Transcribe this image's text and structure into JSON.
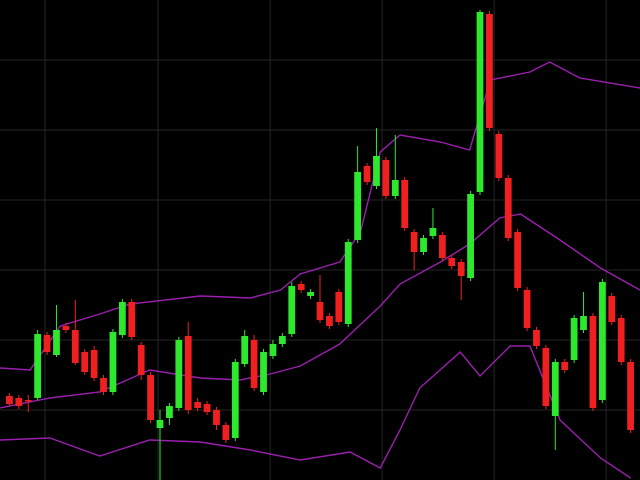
{
  "chart_data": {
    "type": "candlestick",
    "x": [
      1,
      2,
      3,
      4,
      5,
      6,
      7,
      8,
      9,
      10,
      11,
      12,
      13,
      14,
      15,
      16,
      17,
      18,
      19,
      20,
      21,
      22,
      23,
      24,
      25,
      26,
      27,
      28,
      29,
      30,
      31,
      32,
      33,
      34,
      35,
      36,
      37,
      38,
      39,
      40,
      41,
      42,
      43,
      44,
      45,
      46,
      47,
      48,
      49,
      50,
      51,
      52,
      53,
      54,
      55,
      56,
      57,
      58,
      59,
      60,
      61,
      62,
      63,
      64,
      65,
      66,
      67
    ],
    "open": [
      84,
      82,
      80,
      82,
      145,
      125,
      154,
      150,
      128,
      130,
      102,
      88,
      145,
      178,
      135,
      105,
      52,
      62,
      72,
      144,
      78,
      76,
      70,
      55,
      42,
      116,
      140,
      88,
      124,
      136,
      146,
      196,
      184,
      178,
      164,
      188,
      156,
      240,
      314,
      294,
      320,
      284,
      300,
      248,
      228,
      244,
      245,
      222,
      218,
      202,
      288,
      466,
      346,
      302,
      248,
      190,
      150,
      132,
      64,
      118,
      120,
      150,
      164,
      80,
      184,
      162,
      118
    ],
    "high": [
      87,
      85,
      85,
      150,
      148,
      175,
      157,
      180,
      131,
      134,
      105,
      151,
      181,
      181,
      138,
      108,
      70,
      77,
      143,
      158,
      82,
      79,
      73,
      58,
      121,
      150,
      145,
      131,
      140,
      147,
      198,
      199,
      191,
      205,
      167,
      191,
      241,
      334,
      317,
      352,
      323,
      345,
      303,
      251,
      245,
      272,
      248,
      225,
      221,
      289,
      470,
      469,
      349,
      305,
      251,
      193,
      153,
      135,
      121,
      121,
      165,
      188,
      167,
      201,
      187,
      165,
      121
    ],
    "low": [
      74,
      71,
      68,
      80,
      125,
      123,
      147,
      115,
      105,
      99,
      85,
      85,
      142,
      140,
      100,
      57,
      0,
      55,
      69,
      66,
      69,
      65,
      50,
      37,
      39,
      113,
      89,
      85,
      121,
      133,
      143,
      187,
      181,
      157,
      151,
      155,
      153,
      237,
      295,
      291,
      281,
      281,
      249,
      210,
      225,
      241,
      219,
      211,
      180,
      199,
      285,
      349,
      299,
      239,
      189,
      149,
      131,
      71,
      30,
      107,
      117,
      147,
      69,
      77,
      155,
      115,
      47
    ],
    "close": [
      76,
      74,
      79,
      146,
      128,
      150,
      150,
      117,
      108,
      102,
      88,
      148,
      178,
      143,
      105,
      60,
      60,
      74,
      140,
      70,
      72,
      68,
      55,
      40,
      118,
      144,
      92,
      128,
      136,
      144,
      194,
      190,
      188,
      160,
      154,
      158,
      238,
      308,
      298,
      324,
      284,
      300,
      252,
      228,
      242,
      252,
      222,
      214,
      204,
      286,
      468,
      352,
      302,
      242,
      192,
      152,
      134,
      74,
      118,
      110,
      162,
      164,
      72,
      198,
      158,
      118,
      50
    ],
    "up_color": "#2ee82e",
    "down_color": "#f02020",
    "xlim": [
      0,
      68
    ],
    "ylim": [
      0,
      480
    ],
    "xticks": [
      4.78,
      16.79,
      28.7,
      40.6,
      52.5,
      64.4
    ],
    "yticks": [
      420,
      350,
      280,
      210,
      140,
      70
    ],
    "grid": true,
    "grid_color": "#262626",
    "overlays": [
      {
        "color": "#9b1fae",
        "x": [
          0,
          3.2,
          6.4,
          10.6,
          13.8,
          21.3,
          26.6,
          29.8,
          31.9,
          36.1,
          38.3,
          40.4,
          42.5,
          46.8,
          49.9,
          52.1,
          56.3,
          58.4,
          61.6,
          68
        ],
        "values": [
          112,
          110,
          154,
          166,
          176,
          184,
          182,
          190,
          206,
          218,
          248,
          328,
          345,
          338,
          330,
          400,
          408,
          418,
          402,
          392
        ]
      },
      {
        "color": "#9b1fae",
        "x": [
          0,
          5.3,
          10.6,
          15.9,
          21.3,
          25.5,
          28.7,
          31.9,
          36.1,
          40.4,
          42.5,
          46.8,
          49.9,
          53.1,
          55.3,
          59.5,
          63.8,
          68
        ],
        "values": [
          72,
          82,
          88,
          110,
          102,
          100,
          106,
          114,
          136,
          174,
          196,
          218,
          236,
          262,
          266,
          240,
          212,
          190
        ]
      },
      {
        "color": "#9b1fae",
        "x": [
          0,
          5.3,
          10.6,
          15.9,
          21.3,
          26.6,
          31.9,
          37.2,
          40.4,
          42.5,
          44.6,
          48.9,
          51,
          54.2,
          56.3,
          59.5,
          63.8,
          67
        ],
        "values": [
          40,
          42,
          24,
          40,
          38,
          30,
          20,
          28,
          12,
          50,
          92,
          128,
          104,
          134,
          134,
          60,
          22,
          2
        ]
      }
    ]
  }
}
